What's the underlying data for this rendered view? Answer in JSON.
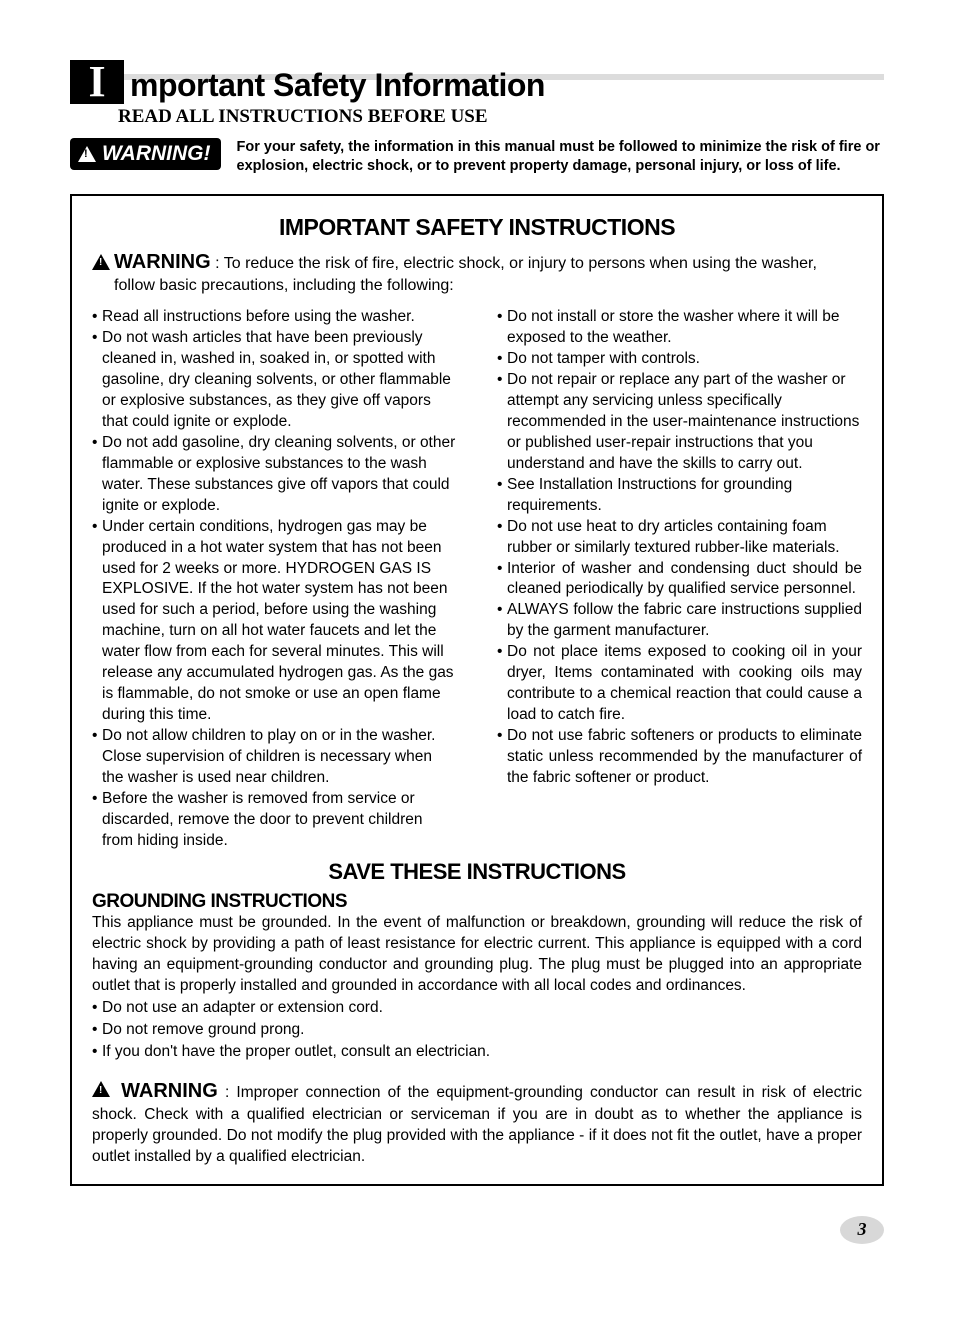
{
  "colors": {
    "text": "#000000",
    "background": "#ffffff",
    "badge_bg": "#000000",
    "badge_fg": "#ffffff",
    "gray_bar": "#dcdcdc",
    "page_num_bg": "#d8d8d8"
  },
  "typography": {
    "body_family": "Arial, Helvetica, sans-serif",
    "serif_family": "Georgia, 'Times New Roman', serif",
    "title_size_pt": 32,
    "subtitle_size_pt": 19,
    "body_size_pt": 15.5,
    "section_title_pt": 23
  },
  "title_initial": "I",
  "title_rest": "mportant Safety Information",
  "subtitle": "READ ALL INSTRUCTIONS BEFORE USE",
  "warning_badge": "WARNING!",
  "warning_intro": "For your safety, the information in this manual must be followed to minimize the risk of fire or explosion, electric shock, or to prevent property damage, personal injury, or loss of life.",
  "main_box_title": "IMPORTANT SAFETY INSTRUCTIONS",
  "warning_word": "WARNING",
  "warning_colon_text": ": To reduce the risk of fire, electric shock, or injury to persons when using the washer, follow basic precautions, including the following:",
  "left_bullets": [
    "Read all instructions before using the washer.",
    "Do not wash articles that have been previously cleaned in, washed in, soaked in, or spotted with gasoline, dry cleaning solvents, or other flammable or explosive substances, as they give off vapors that could ignite or explode.",
    "Do not add gasoline, dry cleaning solvents, or other flammable or explosive substances to the wash water. These substances give off vapors that could ignite or explode.",
    "Under certain conditions, hydrogen gas may be produced in a hot water system that has not been used for 2 weeks or more. HYDROGEN GAS IS EXPLOSIVE. If the hot water system has not been used for such a period, before using the washing machine, turn on all hot water faucets and let the water flow from each for several minutes. This will release any accumulated hydrogen gas. As the gas is flammable, do not smoke or use an open flame during this time.",
    "Do not allow children to play on or in the washer. Close supervision of children is necessary when the washer is used near children.",
    "Before the washer is removed from service or discarded, remove the door to prevent children from hiding inside."
  ],
  "right_bullets": [
    "Do not install or store the washer where it will be exposed to the weather.",
    "Do not tamper with controls.",
    "Do not repair or replace any part of the washer or attempt any servicing unless specifically recommended in the user-maintenance instructions or published user-repair instructions that you understand and have the skills to carry out.",
    "See Installation Instructions for grounding requirements.",
    "Do not use heat to dry articles containing foam rubber or similarly textured rubber-like materials.",
    "Interior of washer and condensing duct should be cleaned periodically by qualified service personnel.",
    "ALWAYS follow the fabric care instructions supplied by the garment manufacturer.",
    "Do not place items exposed to cooking oil in your dryer, Items contaminated with cooking oils may contribute to a chemical reaction that could cause a load to catch fire.",
    "Do not use fabric softeners or products to eliminate static unless recommended by the manufacturer of the fabric softener or product."
  ],
  "save_title": "SAVE THESE INSTRUCTIONS",
  "grounding_title": "GROUNDING INSTRUCTIONS",
  "grounding_para": "This appliance must be grounded. In the event of malfunction or breakdown, grounding will reduce the risk of electric shock by providing a path of least resistance for electric current. This appliance is equipped with a cord having an equipment-grounding conductor and grounding plug. The plug must be plugged into an appropriate outlet that is properly installed and grounded in accordance with all local codes and ordinances.",
  "grounding_sub_bullets": [
    "Do not use an adapter or extension cord.",
    "Do not remove ground prong.",
    "If you don't have the proper outlet, consult an electrician."
  ],
  "footer_warning_text": ": Improper connection of the equipment-grounding conductor can result in risk of electric shock. Check with a qualified electrician or serviceman if you are in doubt as to whether the appliance is properly grounded. Do not modify the plug provided with the appliance - if it does not fit the outlet, have a proper outlet installed by a qualified electrician.",
  "page_number": "3"
}
